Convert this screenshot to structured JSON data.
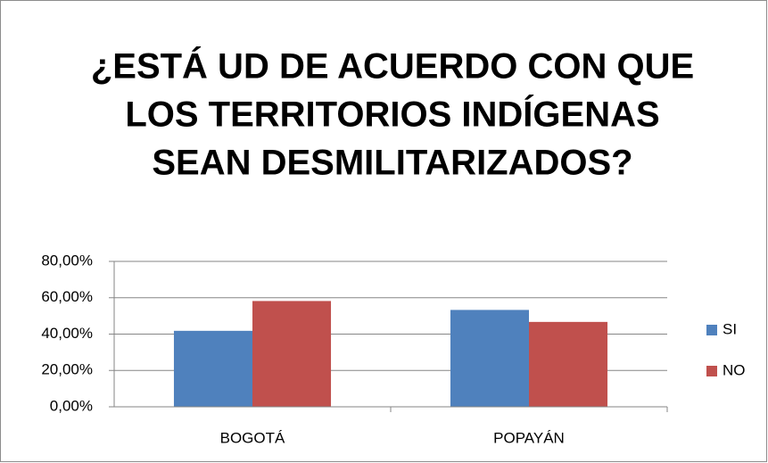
{
  "chart_data": {
    "type": "bar",
    "title": [
      "¿ESTÁ UD DE ACUERDO CON QUE",
      "LOS TERRITORIOS INDÍGENAS",
      "SEAN DESMILITARIZADOS?"
    ],
    "categories": [
      "BOGOTÁ",
      "POPAYÁN"
    ],
    "series": [
      {
        "name": "SI",
        "color": "#4f81bd",
        "values": [
          41.8,
          53.3
        ]
      },
      {
        "name": "NO",
        "color": "#c0504d",
        "values": [
          58.2,
          46.7
        ]
      }
    ],
    "ylim": [
      0,
      80
    ],
    "yticks": [
      {
        "value": 0,
        "label": "0,00%"
      },
      {
        "value": 20,
        "label": "20,00%"
      },
      {
        "value": 40,
        "label": "40,00%"
      },
      {
        "value": 60,
        "label": "60,00%"
      },
      {
        "value": 80,
        "label": "80,00%"
      }
    ],
    "grid": true,
    "legend": "right"
  }
}
